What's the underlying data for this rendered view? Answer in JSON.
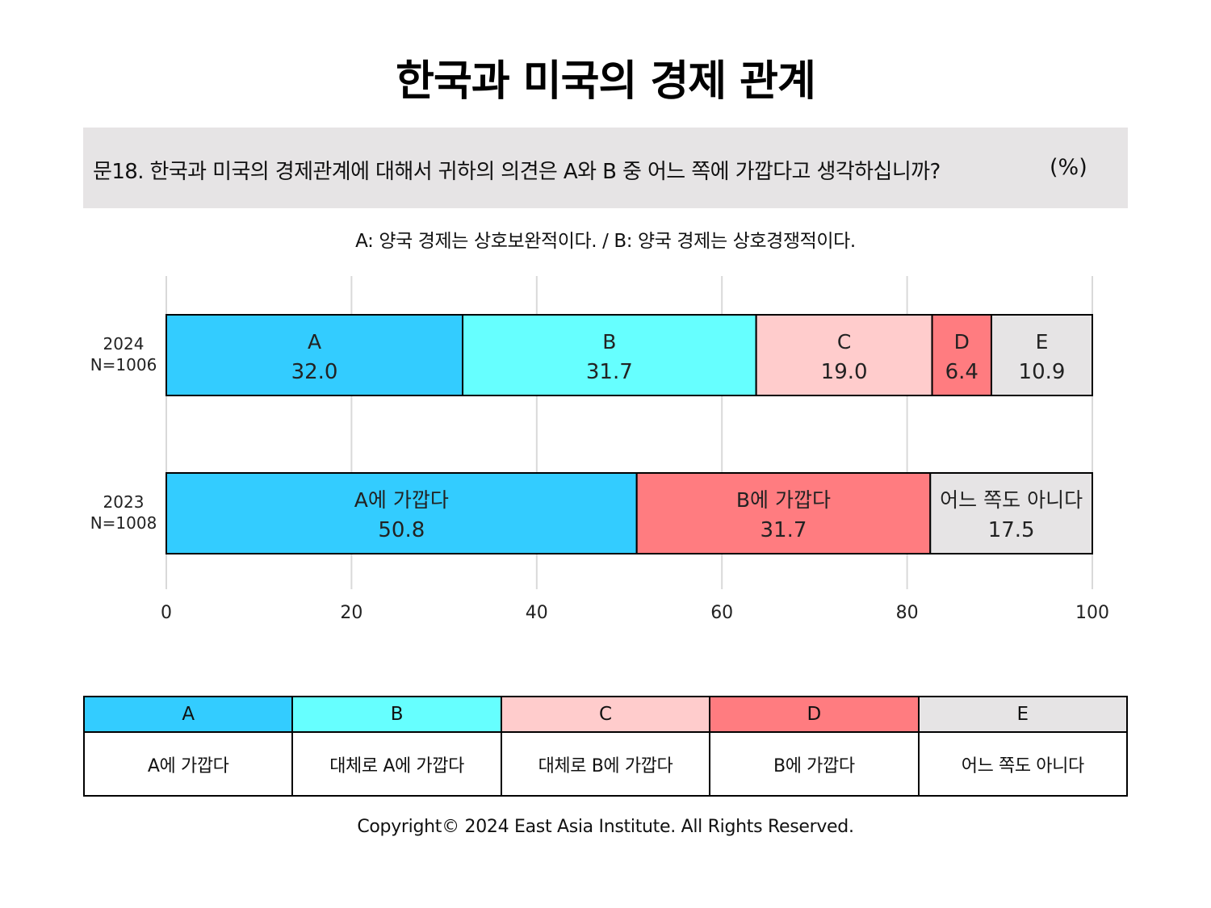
{
  "title": "한국과 미국의 경제 관계",
  "question": "문18. 한국과 미국의 경제관계에 대해서 귀하의 의견은 A와 B 중 어느 쪽에 가깝다고 생각하십니까?",
  "unit": "(%)",
  "note": "A: 양국 경제는 상호보완적이다. / B: 양국 경제는 상호경쟁적이다.",
  "colors": {
    "A": "#33ccff",
    "B": "#66ffff",
    "C": "#ffcccc",
    "D": "#ff7c80",
    "E": "#e6e4e5"
  },
  "chart_data": {
    "type": "bar",
    "orientation": "horizontal",
    "stacked": true,
    "xlim": [
      0,
      100
    ],
    "xticks": [
      0,
      20,
      40,
      60,
      80,
      100
    ],
    "grid": true,
    "rows": [
      {
        "year": "2024",
        "n": "N=1006",
        "segments": [
          {
            "label": "A",
            "value": 32.0,
            "display": "32.0",
            "color": "#33ccff"
          },
          {
            "label": "B",
            "value": 31.7,
            "display": "31.7",
            "color": "#66ffff"
          },
          {
            "label": "C",
            "value": 19.0,
            "display": "19.0",
            "color": "#ffcccc"
          },
          {
            "label": "D",
            "value": 6.4,
            "display": "6.4",
            "color": "#ff7c80"
          },
          {
            "label": "E",
            "value": 10.9,
            "display": "10.9",
            "color": "#e6e4e5"
          }
        ]
      },
      {
        "year": "2023",
        "n": "N=1008",
        "segments": [
          {
            "label": "A에 가깝다",
            "value": 50.8,
            "display": "50.8",
            "color": "#33ccff"
          },
          {
            "label": "B에 가깝다",
            "value": 31.7,
            "display": "31.7",
            "color": "#ff7c80"
          },
          {
            "label": "어느 쪽도 아니다",
            "value": 17.5,
            "display": "17.5",
            "color": "#e6e4e5"
          }
        ]
      }
    ]
  },
  "legend": [
    {
      "key": "A",
      "desc": "A에 가깝다",
      "color": "#33ccff"
    },
    {
      "key": "B",
      "desc": "대체로 A에 가깝다",
      "color": "#66ffff"
    },
    {
      "key": "C",
      "desc": "대체로 B에 가깝다",
      "color": "#ffcccc"
    },
    {
      "key": "D",
      "desc": "B에 가깝다",
      "color": "#ff7c80"
    },
    {
      "key": "E",
      "desc": "어느 쪽도 아니다",
      "color": "#e6e4e5"
    }
  ],
  "copyright": "Copyright© 2024 East Asia Institute. All Rights Reserved."
}
